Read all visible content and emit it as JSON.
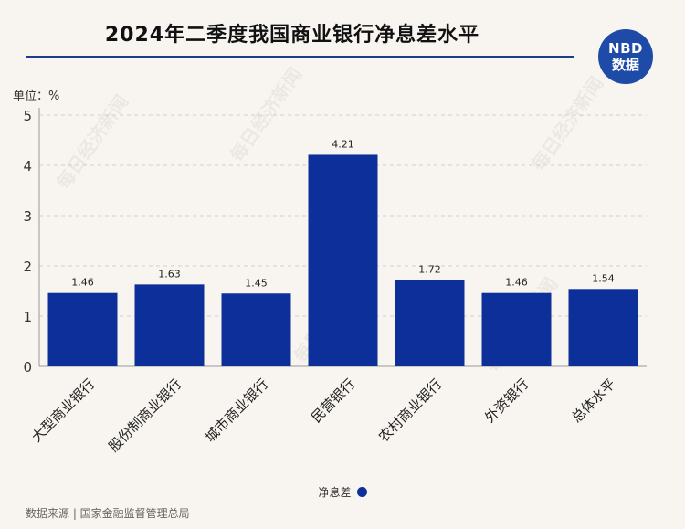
{
  "title": "2024年二季度我国商业银行净息差水平",
  "logo": {
    "line1": "NBD",
    "line2": "数据"
  },
  "unit_label": "单位：%",
  "legend": {
    "label": "净息差",
    "color": "#0d2f9a"
  },
  "source": "数据来源 | 国家金融监督管理总局",
  "watermark": "每日经济新闻",
  "colors": {
    "bar": "#0d2f9a",
    "title_rule": "#1e3c8f",
    "background": "#f8f5f0"
  },
  "chart_data": {
    "type": "bar",
    "title": "2024年二季度我国商业银行净息差水平",
    "xlabel": "",
    "ylabel": "单位：%",
    "ylim": [
      0,
      5
    ],
    "yticks": [
      0,
      1,
      2,
      3,
      4,
      5
    ],
    "grid": true,
    "legend_position": "bottom",
    "categories": [
      "大型商业银行",
      "股份制商业银行",
      "城市商业银行",
      "民营银行",
      "农村商业银行",
      "外资银行",
      "总体水平"
    ],
    "series": [
      {
        "name": "净息差",
        "values": [
          1.46,
          1.63,
          1.45,
          4.21,
          1.72,
          1.46,
          1.54
        ]
      }
    ]
  }
}
